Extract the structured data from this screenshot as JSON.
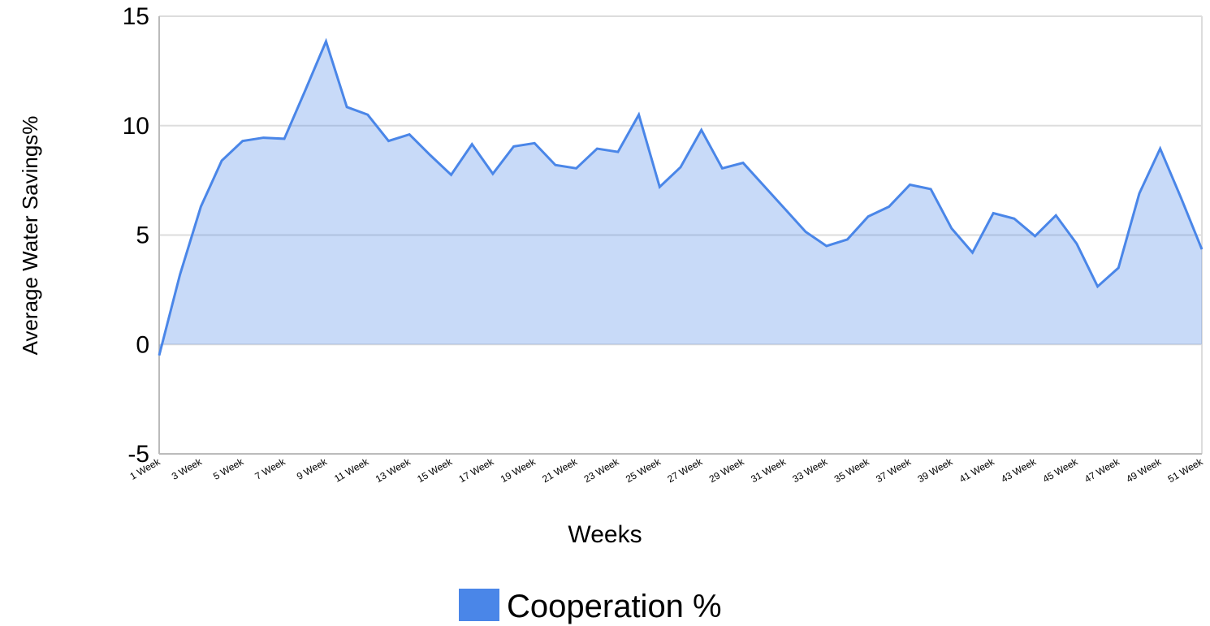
{
  "chart_data": {
    "type": "area",
    "x_label": "Weeks",
    "y_label": "Average Water Savings%",
    "categories": [
      "1 Week",
      null,
      "3 Week",
      null,
      "5 Week",
      null,
      "7 Week",
      null,
      "9 Week",
      null,
      "11 Week",
      null,
      "13 Week",
      null,
      "15 Week",
      null,
      "17 Week",
      null,
      "19 Week",
      null,
      "21 Week",
      null,
      "23 Week",
      null,
      "25 Week",
      null,
      "27 Week",
      null,
      "29 Week",
      null,
      "31 Week",
      null,
      "33 Week",
      null,
      "35 Week",
      null,
      "37 Week",
      null,
      "39 Week",
      null,
      "41 Week",
      null,
      "43 Week",
      null,
      "45 Week",
      null,
      "47 Week",
      null,
      "49 Week",
      null,
      "51 Week"
    ],
    "series": [
      {
        "name": "Cooperation %",
        "color": "#4a86e8",
        "values": [
          -0.5,
          3.2,
          6.3,
          8.4,
          9.3,
          9.45,
          9.4,
          11.6,
          13.85,
          10.85,
          10.5,
          9.3,
          9.6,
          8.65,
          7.75,
          9.15,
          7.8,
          9.05,
          9.2,
          8.2,
          8.05,
          8.95,
          8.8,
          10.5,
          7.2,
          8.1,
          9.8,
          8.05,
          8.3,
          7.25,
          6.2,
          5.15,
          4.5,
          4.8,
          5.85,
          6.3,
          7.3,
          7.1,
          5.3,
          4.2,
          6.0,
          5.75,
          4.95,
          5.9,
          4.6,
          2.65,
          3.5,
          6.9,
          8.95,
          6.7,
          4.35
        ]
      }
    ],
    "ylim": [
      -5,
      15
    ],
    "yticks": [
      -5,
      0,
      5,
      10,
      15
    ],
    "grid": true,
    "legend": "bottom"
  }
}
